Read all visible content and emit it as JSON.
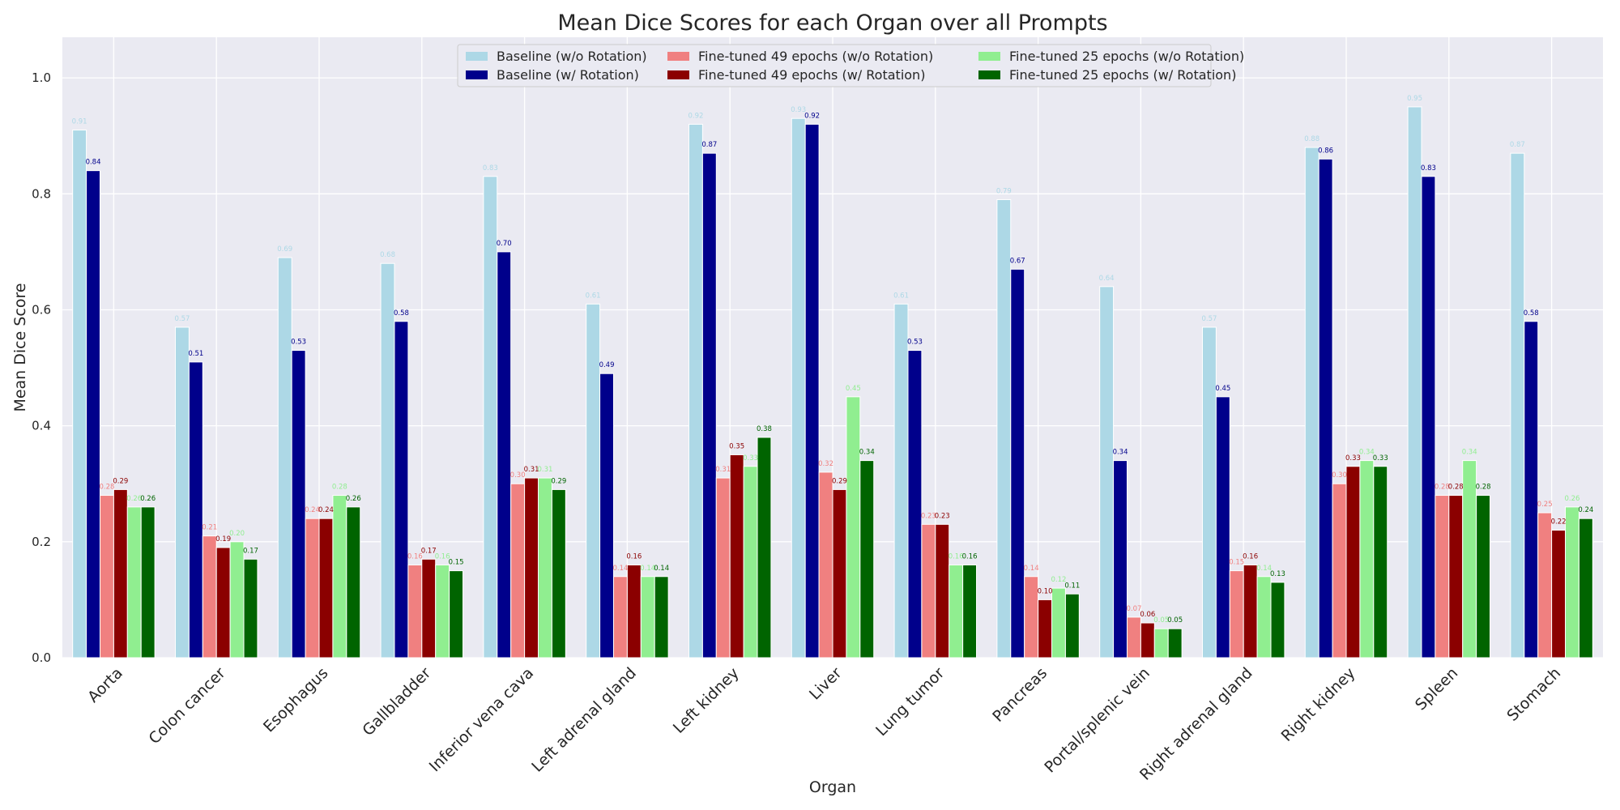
{
  "chart_data": {
    "type": "bar",
    "title": "Mean Dice Scores for each Organ over all Prompts",
    "xlabel": "Organ",
    "ylabel": "Mean Dice Score",
    "ylim": [
      0,
      1.07
    ],
    "yticks": [
      "0.0",
      "0.2",
      "0.4",
      "0.6",
      "0.8",
      "1.0"
    ],
    "grid": true,
    "legend_position": "top-center",
    "categories": [
      "Aorta",
      "Colon cancer",
      "Esophagus",
      "Gallbladder",
      "Inferior vena cava",
      "Left adrenal gland",
      "Left kidney",
      "Liver",
      "Lung tumor",
      "Pancreas",
      "Portal/splenic vein",
      "Right adrenal gland",
      "Right kidney",
      "Spleen",
      "Stomach"
    ],
    "series": [
      {
        "name": "Baseline (w/o Rotation)",
        "color": "#add8e6",
        "values": [
          0.91,
          0.57,
          0.69,
          0.68,
          0.83,
          0.61,
          0.92,
          0.93,
          0.61,
          0.79,
          0.64,
          0.57,
          0.88,
          0.95,
          0.87
        ],
        "labels": [
          "0.91",
          "0.57",
          "0.69",
          "0.68",
          "0.83",
          "0.61",
          "0.92",
          "0.93",
          "0.61",
          "0.79",
          "0.64",
          "0.57",
          "0.88",
          "0.95",
          "0.87"
        ]
      },
      {
        "name": "Baseline (w/ Rotation)",
        "color": "#00008b",
        "values": [
          0.84,
          0.51,
          0.53,
          0.58,
          0.7,
          0.49,
          0.87,
          0.92,
          0.53,
          0.67,
          0.34,
          0.45,
          0.86,
          0.83,
          0.58
        ],
        "labels": [
          "0.84",
          "0.51",
          "0.53",
          "0.58",
          "0.70",
          "0.49",
          "0.87",
          "0.92",
          "0.53",
          "0.67",
          "0.34",
          "0.45",
          "0.86",
          "0.83",
          "0.58"
        ]
      },
      {
        "name": "Fine-tuned 49 epochs (w/o Rotation)",
        "color": "#f08080",
        "values": [
          0.28,
          0.21,
          0.24,
          0.16,
          0.3,
          0.14,
          0.31,
          0.32,
          0.23,
          0.14,
          0.07,
          0.15,
          0.3,
          0.28,
          0.25
        ],
        "labels": [
          "0.28",
          "0.21",
          "0.24",
          "0.16",
          "0.30",
          "0.14",
          "0.31",
          "0.32",
          "0.23",
          "0.14",
          "0.07",
          "0.15",
          "0.30",
          "0.28",
          "0.25"
        ]
      },
      {
        "name": "Fine-tuned 49 epochs (w/ Rotation)",
        "color": "#8b0000",
        "values": [
          0.29,
          0.19,
          0.24,
          0.17,
          0.31,
          0.16,
          0.35,
          0.29,
          0.23,
          0.1,
          0.06,
          0.16,
          0.33,
          0.28,
          0.22
        ],
        "labels": [
          "0.29",
          "0.19",
          "0.24",
          "0.17",
          "0.31",
          "0.16",
          "0.35",
          "0.29",
          "0.23",
          "0.10",
          "0.06",
          "0.16",
          "0.33",
          "0.28",
          "0.22"
        ]
      },
      {
        "name": "Fine-tuned 25 epochs (w/o Rotation)",
        "color": "#90ee90",
        "values": [
          0.26,
          0.2,
          0.28,
          0.16,
          0.31,
          0.14,
          0.33,
          0.45,
          0.16,
          0.12,
          0.05,
          0.14,
          0.34,
          0.34,
          0.26
        ],
        "labels": [
          "0.26",
          "0.20",
          "0.28",
          "0.16",
          "0.31",
          "0.14",
          "0.33",
          "0.45",
          "0.16",
          "0.12",
          "0.05",
          "0.14",
          "0.34",
          "0.34",
          "0.26"
        ]
      },
      {
        "name": "Fine-tuned 25 epochs (w/ Rotation)",
        "color": "#006400",
        "values": [
          0.26,
          0.17,
          0.26,
          0.15,
          0.29,
          0.14,
          0.38,
          0.34,
          0.16,
          0.11,
          0.05,
          0.13,
          0.33,
          0.28,
          0.24
        ],
        "labels": [
          "0.26",
          "0.17",
          "0.26",
          "0.15",
          "0.29",
          "0.14",
          "0.38",
          "0.34",
          "0.16",
          "0.11",
          "0.05",
          "0.13",
          "0.33",
          "0.28",
          "0.24"
        ]
      }
    ],
    "colors": {
      "plot_background": "#eaeaf2",
      "grid": "#ffffff",
      "text": "#262626"
    }
  }
}
